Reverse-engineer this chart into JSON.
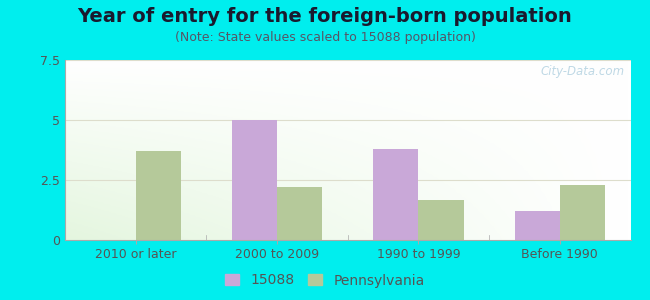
{
  "title": "Year of entry for the foreign-born population",
  "subtitle": "(Note: State values scaled to 15088 population)",
  "categories": [
    "2010 or later",
    "2000 to 2009",
    "1990 to 1999",
    "Before 1990"
  ],
  "series_15088": [
    0,
    5.0,
    3.8,
    1.2
  ],
  "series_pennsylvania": [
    3.7,
    2.2,
    1.65,
    2.3
  ],
  "color_15088": "#c9a8d8",
  "color_pennsylvania": "#b5c99a",
  "ylim": [
    0,
    7.5
  ],
  "yticks": [
    0,
    2.5,
    5,
    7.5
  ],
  "outer_background": "#00eeee",
  "legend_15088": "15088",
  "legend_pennsylvania": "Pennsylvania",
  "bar_width": 0.32,
  "title_fontsize": 14,
  "subtitle_fontsize": 9,
  "tick_fontsize": 9,
  "legend_fontsize": 10,
  "watermark": "City-Data.com"
}
